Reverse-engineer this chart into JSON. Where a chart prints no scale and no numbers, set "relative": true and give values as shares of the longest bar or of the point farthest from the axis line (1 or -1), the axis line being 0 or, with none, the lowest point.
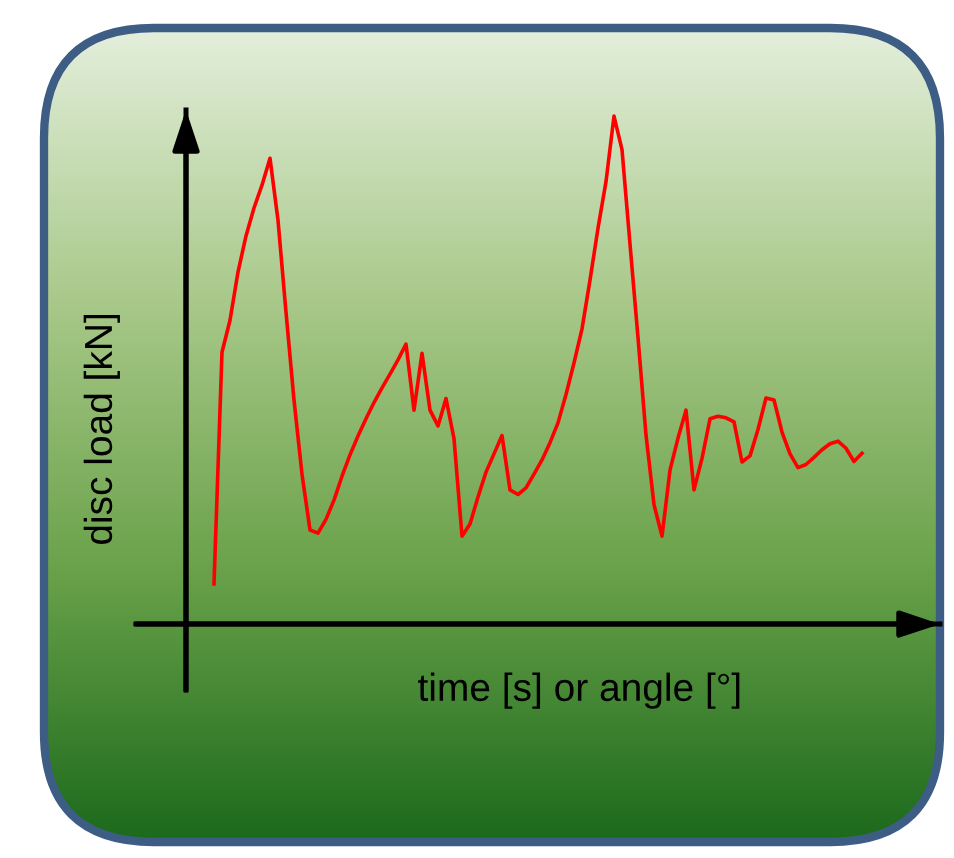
{
  "chart_data": {
    "type": "line",
    "relative": true,
    "xlabel": "time [s] or angle [°]",
    "ylabel": "disc load [kN]",
    "legend": false,
    "marker": "none",
    "line_style": "solid",
    "categories": [
      null,
      null,
      null,
      null,
      null,
      null,
      null,
      null,
      null,
      null,
      null,
      null,
      null,
      null,
      null,
      null,
      null,
      null,
      null,
      null,
      null,
      null,
      null,
      null,
      null,
      null,
      null,
      null,
      null,
      null,
      null,
      null,
      null,
      null,
      null,
      null,
      null,
      null,
      null,
      null,
      null,
      null,
      null,
      null,
      null,
      null,
      null,
      null,
      null,
      null,
      null,
      null,
      null,
      null,
      null,
      null,
      null,
      null,
      null,
      null,
      null,
      null,
      null,
      null,
      null,
      null,
      null,
      null,
      null,
      null,
      null,
      null,
      null,
      null,
      null,
      null,
      null,
      null,
      null,
      null,
      null,
      null
    ],
    "series": [
      {
        "color": "#ff0000",
        "values": [
          0.079,
          0.535,
          0.598,
          0.693,
          0.764,
          0.819,
          0.864,
          0.917,
          0.795,
          0.614,
          0.441,
          0.295,
          0.185,
          0.179,
          0.206,
          0.244,
          0.291,
          0.333,
          0.37,
          0.404,
          0.436,
          0.465,
          0.492,
          0.52,
          0.551,
          0.421,
          0.533,
          0.421,
          0.39,
          0.444,
          0.365,
          0.173,
          0.197,
          0.25,
          0.299,
          0.335,
          0.371,
          0.264,
          0.255,
          0.268,
          0.295,
          0.323,
          0.357,
          0.396,
          0.452,
          0.514,
          0.581,
          0.677,
          0.779,
          0.871,
          1.0,
          0.934,
          0.748,
          0.564,
          0.372,
          0.235,
          0.173,
          0.303,
          0.366,
          0.421,
          0.264,
          0.326,
          0.404,
          0.409,
          0.406,
          0.398,
          0.319,
          0.331,
          0.383,
          0.445,
          0.441,
          0.378,
          0.335,
          0.308,
          0.314,
          0.328,
          0.343,
          0.355,
          0.36,
          0.346,
          0.32,
          0.336
        ]
      }
    ]
  }
}
